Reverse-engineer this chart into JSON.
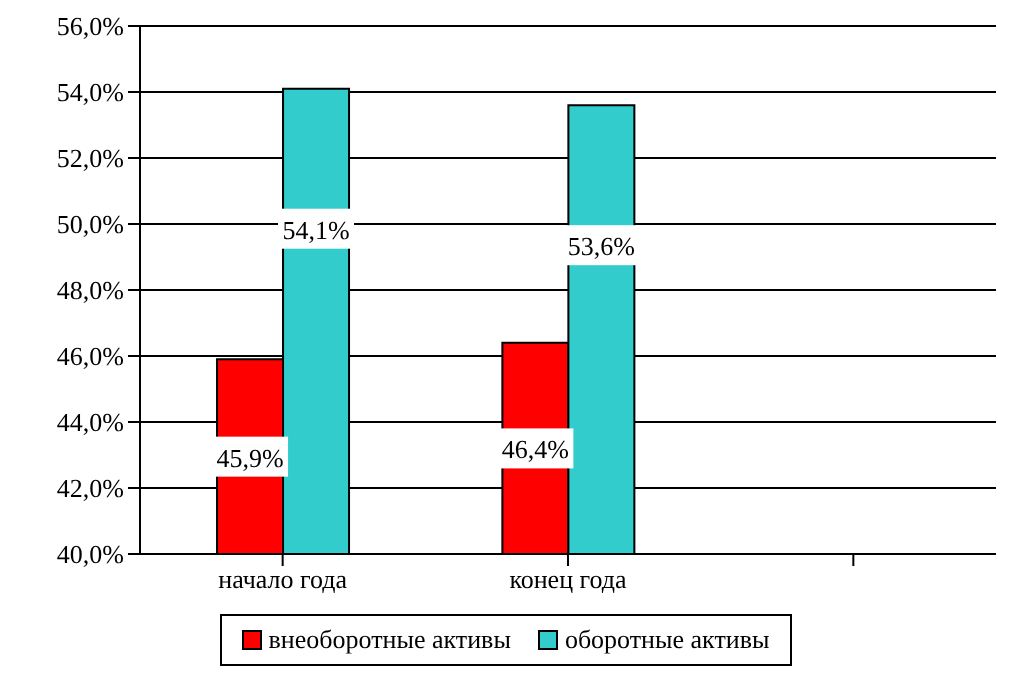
{
  "chart_data": {
    "type": "bar",
    "categories": [
      "начало года",
      "конец года",
      null
    ],
    "series": [
      {
        "name": "внеоборотные активы",
        "color": "#ff0000",
        "values": [
          45.9,
          46.4,
          null
        ],
        "value_labels": [
          "45,9%",
          "46,4%",
          null
        ]
      },
      {
        "name": "оборотные активы",
        "color": "#33cccc",
        "values": [
          54.1,
          53.6,
          null
        ],
        "value_labels": [
          "54,1%",
          "53,6%",
          null
        ]
      }
    ],
    "ylim": [
      40,
      56
    ],
    "yticks": [
      {
        "value": 40,
        "label": "40,0%"
      },
      {
        "value": 42,
        "label": "42,0%"
      },
      {
        "value": 44,
        "label": "44,0%"
      },
      {
        "value": 46,
        "label": "46,0%"
      },
      {
        "value": 48,
        "label": "48,0%"
      },
      {
        "value": 50,
        "label": "50,0%"
      },
      {
        "value": 52,
        "label": "52,0%"
      },
      {
        "value": 54,
        "label": "54,0%"
      },
      {
        "value": 56,
        "label": "56,0%"
      }
    ],
    "grid": "y",
    "legend": "bottom"
  }
}
